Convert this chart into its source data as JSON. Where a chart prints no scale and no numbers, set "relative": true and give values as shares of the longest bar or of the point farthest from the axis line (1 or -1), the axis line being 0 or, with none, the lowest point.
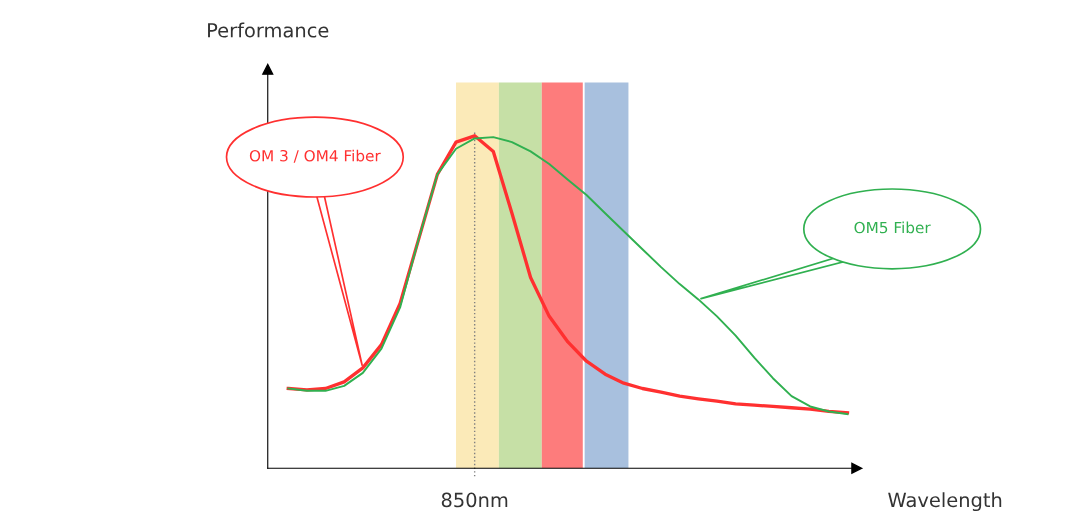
{
  "chart_data": {
    "type": "line",
    "relative": true,
    "xlabel": "Wavelength",
    "legend": false,
    "marker": "none",
    "line_style": "solid",
    "annotations": [
      "Performance",
      "850nm"
    ],
    "categories": [
      null,
      null,
      null,
      null,
      null,
      null,
      null,
      null,
      null,
      null,
      null,
      null,
      null,
      null,
      null,
      null,
      null,
      null,
      null,
      null,
      null,
      null,
      null,
      null,
      null,
      null,
      null,
      null,
      null,
      null,
      null
    ],
    "series": [
      {
        "name": "OM 3 / OM4 Fiber",
        "color": "#ff3030",
        "values": [
          0.24,
          0.236,
          0.24,
          0.26,
          0.302,
          0.372,
          0.496,
          0.69,
          0.884,
          0.981,
          1,
          0.953,
          0.767,
          0.574,
          0.457,
          0.38,
          0.322,
          0.283,
          0.256,
          0.24,
          0.229,
          0.217,
          0.209,
          0.202,
          0.194,
          0.19,
          0.186,
          0.182,
          0.178,
          0.171,
          0.167
        ]
      },
      {
        "name": "OM5 Fiber",
        "color": "#30b050",
        "values": [
          0.24,
          0.233,
          0.233,
          0.248,
          0.287,
          0.36,
          0.484,
          0.69,
          0.884,
          0.961,
          0.992,
          0.996,
          0.981,
          0.953,
          0.915,
          0.868,
          0.822,
          0.767,
          0.713,
          0.659,
          0.605,
          0.554,
          0.508,
          0.457,
          0.399,
          0.333,
          0.271,
          0.217,
          0.186,
          0.171,
          0.163
        ]
      }
    ]
  }
}
